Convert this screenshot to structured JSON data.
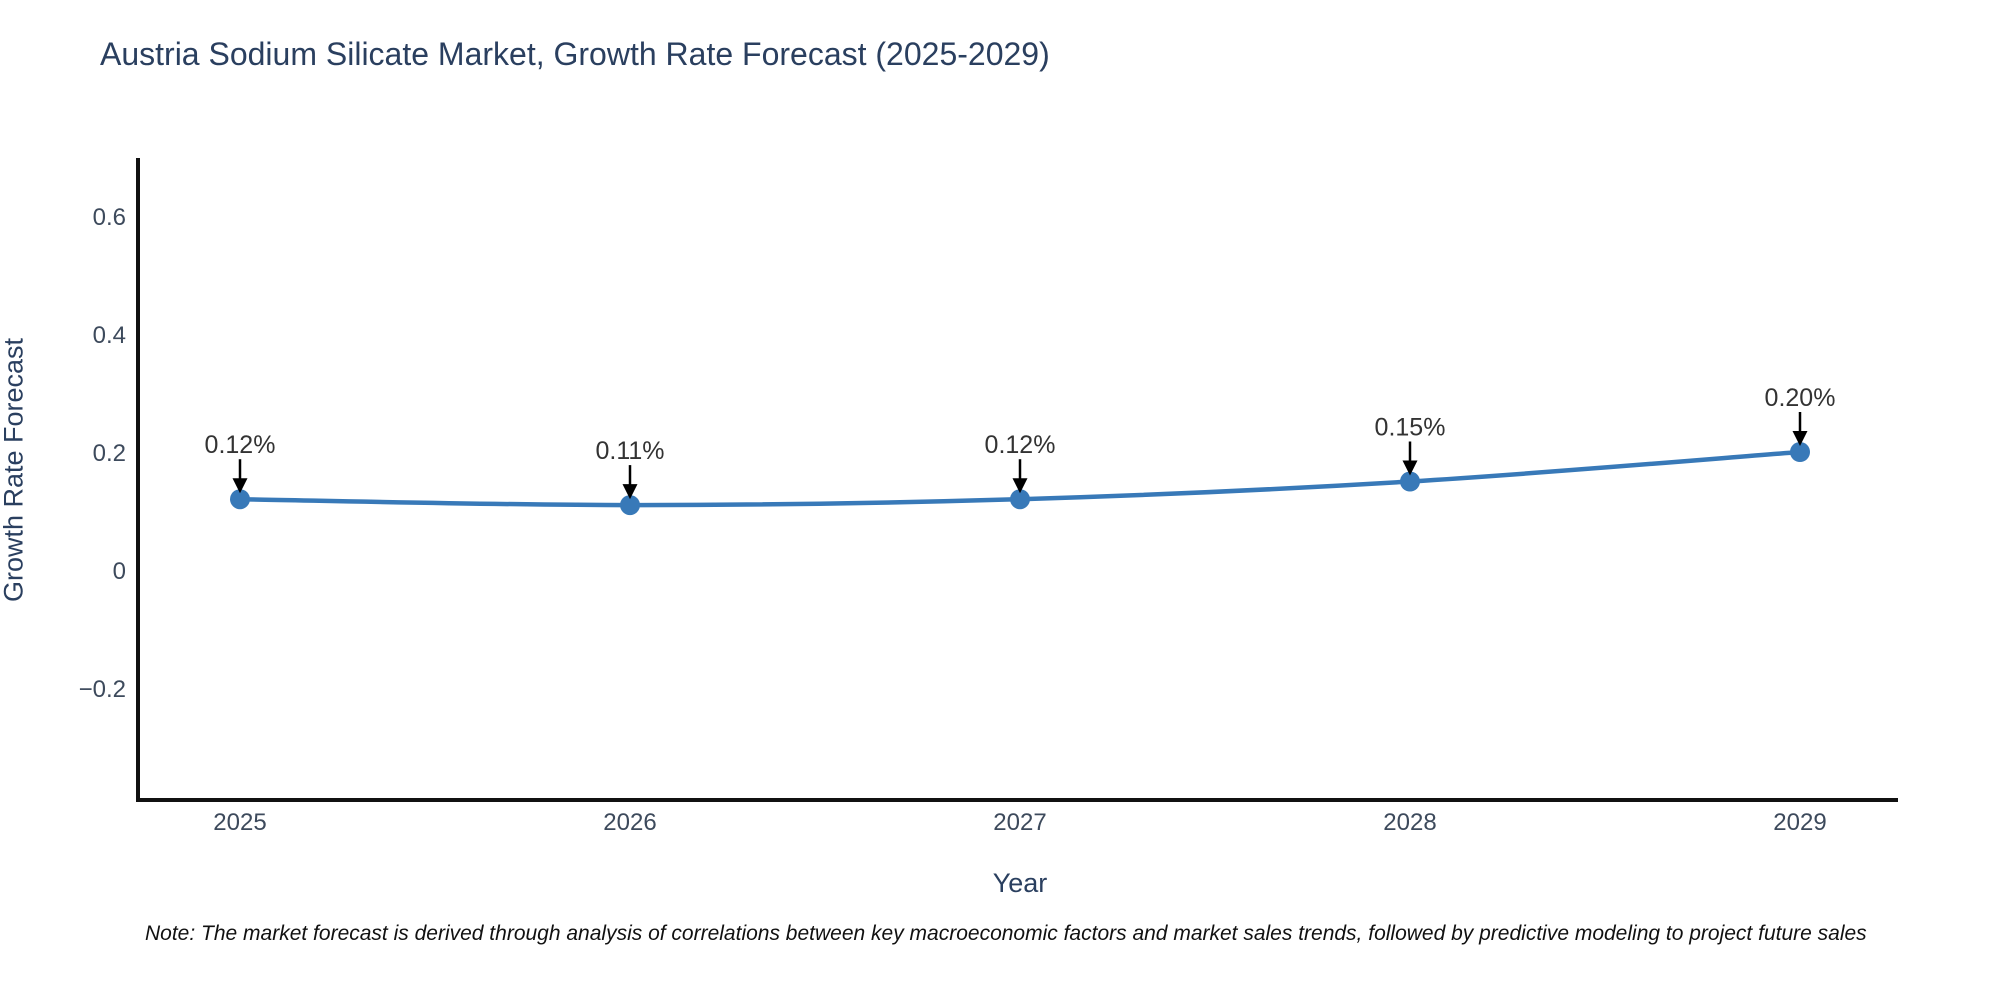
{
  "title": "Austria Sodium Silicate Market, Growth Rate Forecast (2025-2029)",
  "note": "Note: The market forecast is derived through analysis of correlations between key macroeconomic factors and market sales trends, followed by predictive modeling to project future sales",
  "chart_data": {
    "type": "line",
    "title": "Austria Sodium Silicate Market, Growth Rate Forecast (2025-2029)",
    "xlabel": "Year",
    "ylabel": "Growth Rate Forecast",
    "x": [
      2025,
      2026,
      2027,
      2028,
      2029
    ],
    "y": [
      0.12,
      0.11,
      0.12,
      0.15,
      0.2
    ],
    "point_labels": [
      "0.12%",
      "0.11%",
      "0.12%",
      "0.15%",
      "0.20%"
    ],
    "xtick_labels": [
      "2025",
      "2026",
      "2027",
      "2028",
      "2029"
    ],
    "yticks": [
      -0.2,
      0,
      0.2,
      0.4,
      0.6
    ],
    "ytick_labels": [
      "−0.2",
      "0",
      "0.2",
      "0.4",
      "0.6"
    ],
    "ylim": [
      -0.39,
      0.7
    ],
    "grid": false,
    "legend": null,
    "colors": {
      "line": "#3879b8",
      "marker": "#3879b8",
      "axis": "#111111",
      "tick_text": "#3d4a5c",
      "annotation_text": "#333333",
      "annotation_arrow": "#000000",
      "title_text": "#2a3f5f"
    }
  }
}
